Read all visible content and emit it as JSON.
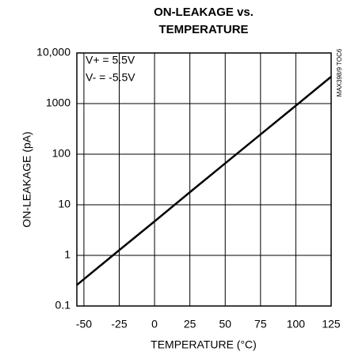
{
  "chart_data": {
    "type": "line",
    "title_lines": [
      "ON-LEAKAGE vs.",
      "TEMPERATURE"
    ],
    "xlabel": "TEMPERATURE (°C)",
    "ylabel": "ON-LEAKAGE (pA)",
    "annotations": [
      "V+ = 5.5V",
      "V- = -5.5V"
    ],
    "side_note": "MAX398/9 TOC6",
    "x": [
      -55,
      -25,
      0,
      25,
      50,
      75,
      100,
      125
    ],
    "series": [
      {
        "color": "#000000",
        "values": [
          0.26,
          1.27,
          4.7,
          17.7,
          66,
          245,
          910,
          3400
        ]
      }
    ],
    "xlim": [
      -55,
      125
    ],
    "xticks": [
      -50,
      -25,
      0,
      25,
      50,
      75,
      100,
      125
    ],
    "ylim": [
      0.1,
      10000
    ],
    "yticks": [
      0.1,
      1,
      10,
      100,
      1000,
      {
        "value": 10000,
        "label": "10,000"
      }
    ],
    "ylog": true,
    "grid": true
  }
}
